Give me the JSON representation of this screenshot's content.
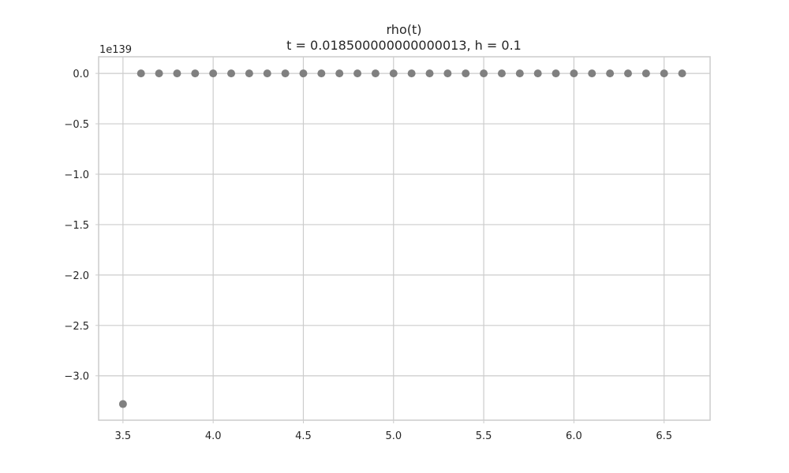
{
  "chart_data": {
    "type": "scatter",
    "title": "rho(t)",
    "subtitle": "t = 0.018500000000000013, h = 0.1",
    "xlabel": "",
    "ylabel": "",
    "y_offset_label": "1e139",
    "xlim": [
      3.365,
      6.755
    ],
    "ylim": [
      -3.44,
      0.165
    ],
    "x_ticks": [
      3.5,
      4.0,
      4.5,
      5.0,
      5.5,
      6.0,
      6.5
    ],
    "x_tick_labels": [
      "3.5",
      "4.0",
      "4.5",
      "5.0",
      "5.5",
      "6.0",
      "6.5"
    ],
    "y_ticks": [
      0.0,
      -0.5,
      -1.0,
      -1.5,
      -2.0,
      -2.5,
      -3.0
    ],
    "y_tick_labels": [
      "0.0",
      "−0.5",
      "−1.0",
      "−1.5",
      "−2.0",
      "−2.5",
      "−3.0"
    ],
    "grid": true,
    "marker_color": "#808080",
    "x": [
      3.5,
      3.6,
      3.7,
      3.8,
      3.9,
      4.0,
      4.1,
      4.2,
      4.3,
      4.4,
      4.5,
      4.6,
      4.7,
      4.8,
      4.9,
      5.0,
      5.1,
      5.2,
      5.3,
      5.4,
      5.5,
      5.6,
      5.7,
      5.8,
      5.9,
      6.0,
      6.1,
      6.2,
      6.3,
      6.4,
      6.5,
      6.6
    ],
    "y": [
      -3.28,
      0,
      0,
      0,
      0,
      0,
      0,
      0,
      0,
      0,
      0,
      0,
      0,
      0,
      0,
      0,
      0,
      0,
      0,
      0,
      0,
      0,
      0,
      0,
      0,
      0,
      0,
      0,
      0,
      0,
      0,
      0
    ]
  }
}
